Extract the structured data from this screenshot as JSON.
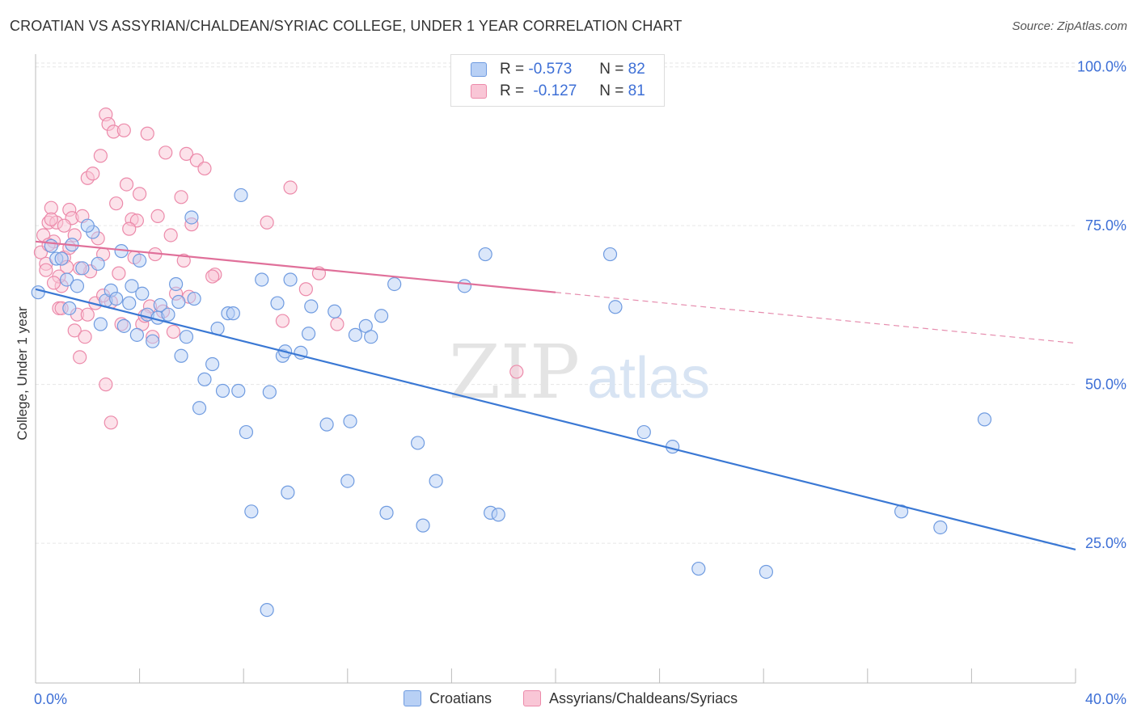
{
  "title": "CROATIAN VS ASSYRIAN/CHALDEAN/SYRIAC COLLEGE, UNDER 1 YEAR CORRELATION CHART",
  "source": "Source: ZipAtlas.com",
  "watermark": {
    "zip": "ZIP",
    "atlas": "atlas"
  },
  "legend": {
    "rows": [
      {
        "r_label": "R =",
        "r_value": "-0.573",
        "n_label": "N =",
        "n_value": "82"
      },
      {
        "r_label": "R =",
        "r_value": "-0.127",
        "n_label": "N =",
        "n_value": "81"
      }
    ]
  },
  "chart_data": {
    "type": "scatter",
    "title": "CROATIAN VS ASSYRIAN/CHALDEAN/SYRIAC COLLEGE, UNDER 1 YEAR CORRELATION CHART",
    "xlabel": "",
    "ylabel": "College, Under 1 year",
    "x_tick_labels": [
      "0.0%",
      "40.0%"
    ],
    "y_tick_labels": [
      "100.0%",
      "75.0%",
      "50.0%",
      "25.0%"
    ],
    "y_ticks": [
      100,
      75,
      50,
      25
    ],
    "xlim": [
      0,
      40
    ],
    "ylim": [
      3,
      102
    ],
    "grid": true,
    "legend_position": "top-center",
    "colors": {
      "croatians_fill": "#b8d0f5",
      "croatians_stroke": "#6f9be0",
      "croatians_line": "#3a78d4",
      "assyrians_fill": "#f9c6d6",
      "assyrians_stroke": "#ec8aaa",
      "assyrians_line": "#e0709a",
      "tick_label": "#3d6fd6"
    },
    "series": [
      {
        "name": "Croatians",
        "r": -0.573,
        "n": 82,
        "trend": {
          "x0": 0,
          "y0": 65.0,
          "x1": 40,
          "y1": 24.0,
          "solid_to": 40
        },
        "points": [
          [
            0.1,
            64.5
          ],
          [
            0.6,
            71.8
          ],
          [
            0.8,
            69.8
          ],
          [
            1.0,
            69.8
          ],
          [
            1.2,
            66.5
          ],
          [
            1.4,
            72.0
          ],
          [
            1.6,
            65.5
          ],
          [
            1.8,
            68.3
          ],
          [
            2.2,
            74.0
          ],
          [
            2.4,
            69.0
          ],
          [
            2.5,
            59.5
          ],
          [
            2.7,
            63.2
          ],
          [
            2.9,
            64.8
          ],
          [
            3.3,
            71.0
          ],
          [
            3.4,
            59.2
          ],
          [
            3.6,
            62.8
          ],
          [
            3.7,
            65.5
          ],
          [
            3.9,
            57.8
          ],
          [
            4.1,
            64.3
          ],
          [
            4.3,
            61.0
          ],
          [
            4.5,
            56.8
          ],
          [
            4.7,
            60.5
          ],
          [
            4.8,
            62.5
          ],
          [
            5.1,
            61.0
          ],
          [
            5.4,
            65.8
          ],
          [
            5.6,
            54.5
          ],
          [
            5.8,
            57.5
          ],
          [
            6.1,
            63.5
          ],
          [
            6.3,
            46.3
          ],
          [
            6.5,
            50.8
          ],
          [
            6.8,
            53.2
          ],
          [
            7.0,
            58.8
          ],
          [
            7.2,
            49.0
          ],
          [
            7.4,
            61.2
          ],
          [
            7.6,
            61.2
          ],
          [
            7.8,
            49.0
          ],
          [
            8.1,
            42.5
          ],
          [
            8.3,
            30.0
          ],
          [
            8.7,
            66.5
          ],
          [
            8.9,
            14.5
          ],
          [
            9.0,
            48.8
          ],
          [
            9.3,
            62.8
          ],
          [
            9.5,
            54.5
          ],
          [
            9.7,
            33.0
          ],
          [
            9.8,
            66.5
          ],
          [
            10.2,
            55.0
          ],
          [
            10.6,
            62.3
          ],
          [
            11.2,
            43.7
          ],
          [
            11.5,
            61.5
          ],
          [
            12.0,
            34.8
          ],
          [
            12.1,
            44.2
          ],
          [
            12.3,
            57.8
          ],
          [
            12.7,
            59.2
          ],
          [
            13.3,
            60.8
          ],
          [
            13.5,
            29.8
          ],
          [
            13.8,
            65.8
          ],
          [
            14.7,
            40.8
          ],
          [
            14.9,
            27.8
          ],
          [
            15.4,
            34.8
          ],
          [
            16.5,
            65.5
          ],
          [
            17.3,
            70.5
          ],
          [
            17.5,
            29.8
          ],
          [
            17.8,
            29.5
          ],
          [
            22.1,
            70.5
          ],
          [
            22.3,
            62.2
          ],
          [
            23.4,
            42.5
          ],
          [
            24.5,
            40.2
          ],
          [
            25.5,
            21.0
          ],
          [
            28.1,
            20.5
          ],
          [
            33.3,
            30.0
          ],
          [
            34.8,
            27.5
          ],
          [
            36.5,
            44.5
          ],
          [
            6.0,
            76.3
          ],
          [
            2.0,
            75.0
          ],
          [
            4.0,
            69.5
          ],
          [
            7.9,
            79.8
          ],
          [
            1.3,
            62.0
          ],
          [
            5.5,
            63.0
          ],
          [
            9.6,
            55.2
          ],
          [
            10.5,
            58.0
          ],
          [
            3.1,
            63.5
          ],
          [
            12.9,
            57.5
          ]
        ]
      },
      {
        "name": "Assyrians/Chaldeans/Syriacs",
        "r": -0.127,
        "n": 81,
        "trend": {
          "x0": 0,
          "y0": 72.5,
          "x1": 40,
          "y1": 56.5,
          "solid_to": 20
        },
        "points": [
          [
            0.2,
            70.8
          ],
          [
            0.3,
            73.5
          ],
          [
            0.4,
            69.0
          ],
          [
            0.5,
            75.5
          ],
          [
            0.6,
            77.8
          ],
          [
            0.7,
            72.5
          ],
          [
            0.8,
            75.5
          ],
          [
            0.9,
            62.0
          ],
          [
            1.0,
            65.5
          ],
          [
            1.1,
            70.0
          ],
          [
            1.2,
            68.5
          ],
          [
            1.3,
            77.5
          ],
          [
            1.4,
            76.2
          ],
          [
            1.5,
            58.5
          ],
          [
            1.6,
            61.0
          ],
          [
            1.7,
            54.3
          ],
          [
            1.8,
            76.5
          ],
          [
            1.9,
            57.5
          ],
          [
            2.0,
            82.5
          ],
          [
            2.1,
            67.8
          ],
          [
            2.2,
            83.2
          ],
          [
            2.3,
            62.8
          ],
          [
            2.5,
            86.0
          ],
          [
            2.6,
            70.5
          ],
          [
            2.7,
            92.5
          ],
          [
            2.8,
            91.0
          ],
          [
            2.9,
            63.0
          ],
          [
            3.0,
            89.8
          ],
          [
            3.1,
            78.5
          ],
          [
            3.2,
            67.5
          ],
          [
            3.4,
            90.0
          ],
          [
            3.5,
            81.5
          ],
          [
            3.7,
            76.0
          ],
          [
            3.9,
            75.8
          ],
          [
            4.0,
            80.0
          ],
          [
            4.1,
            59.5
          ],
          [
            4.3,
            89.5
          ],
          [
            4.5,
            57.5
          ],
          [
            4.7,
            76.5
          ],
          [
            4.9,
            61.5
          ],
          [
            5.0,
            86.5
          ],
          [
            5.2,
            73.5
          ],
          [
            5.4,
            64.3
          ],
          [
            5.6,
            79.5
          ],
          [
            5.8,
            86.3
          ],
          [
            6.0,
            75.2
          ],
          [
            6.2,
            85.3
          ],
          [
            6.5,
            84.0
          ],
          [
            6.9,
            67.3
          ],
          [
            8.9,
            75.5
          ],
          [
            9.5,
            60.0
          ],
          [
            9.8,
            81.0
          ],
          [
            10.4,
            65.0
          ],
          [
            10.9,
            67.5
          ],
          [
            11.6,
            59.5
          ],
          [
            18.5,
            52.0
          ],
          [
            2.7,
            50.0
          ],
          [
            2.9,
            44.0
          ],
          [
            1.0,
            62.0
          ],
          [
            0.9,
            67.0
          ],
          [
            1.5,
            73.5
          ],
          [
            3.3,
            59.5
          ],
          [
            4.4,
            62.3
          ],
          [
            5.3,
            58.3
          ],
          [
            5.7,
            69.5
          ],
          [
            0.5,
            72.0
          ],
          [
            0.7,
            66.0
          ],
          [
            1.1,
            75.0
          ],
          [
            2.4,
            73.0
          ],
          [
            3.6,
            74.5
          ],
          [
            4.6,
            70.5
          ],
          [
            6.8,
            67.0
          ],
          [
            0.4,
            68.0
          ],
          [
            1.7,
            68.3
          ],
          [
            2.6,
            64.0
          ],
          [
            4.2,
            60.8
          ],
          [
            0.6,
            76.0
          ],
          [
            1.3,
            71.5
          ],
          [
            3.8,
            70.0
          ],
          [
            2.0,
            61.0
          ],
          [
            5.9,
            63.8
          ]
        ]
      }
    ]
  }
}
